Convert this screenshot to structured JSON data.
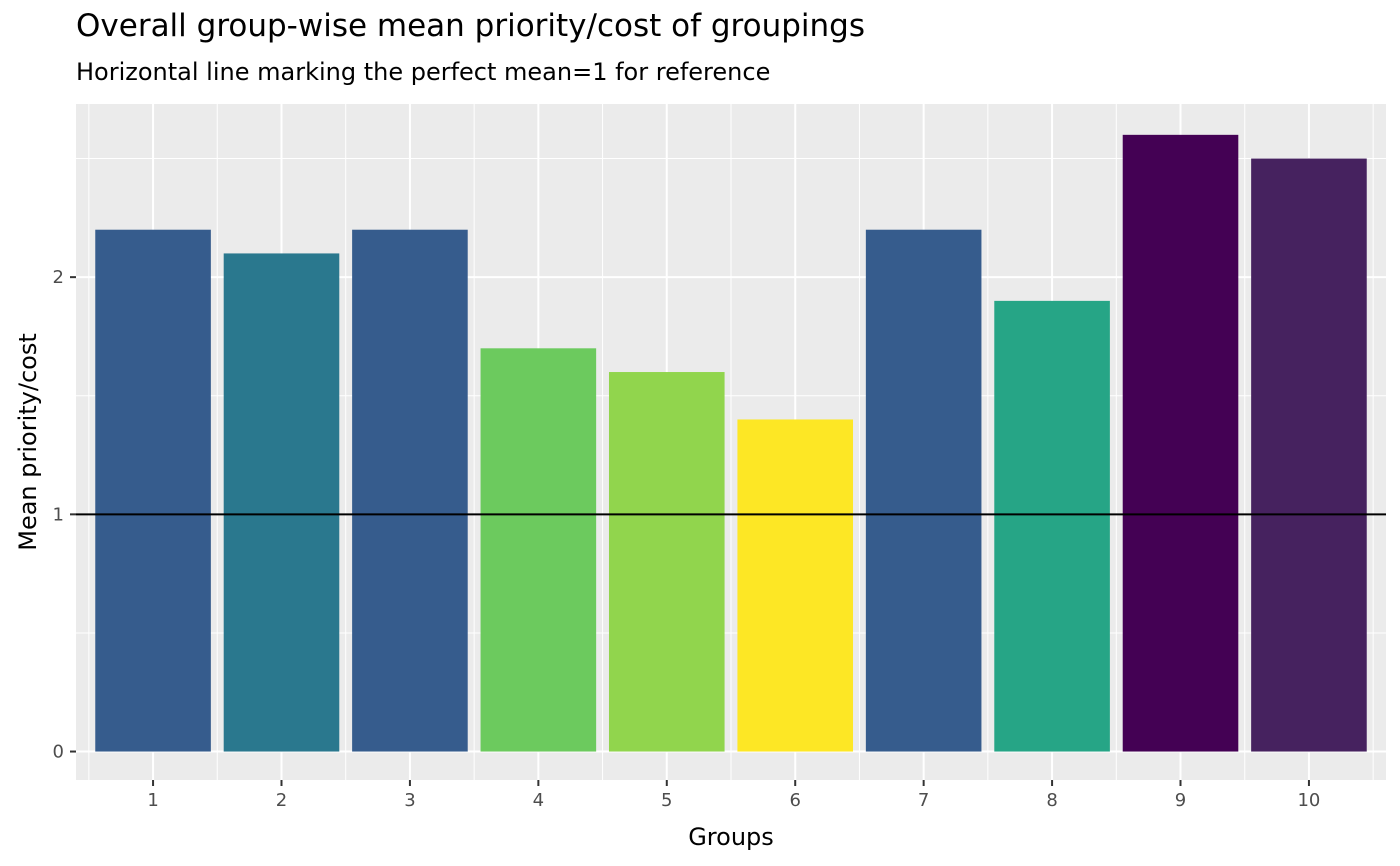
{
  "chart_data": {
    "type": "bar",
    "title": "Overall group-wise mean priority/cost of groupings",
    "subtitle": "Horizontal line marking the perfect mean=1 for reference",
    "xlabel": "Groups",
    "ylabel": "Mean priority/cost",
    "categories": [
      "1",
      "2",
      "3",
      "4",
      "5",
      "6",
      "7",
      "8",
      "9",
      "10"
    ],
    "values": [
      2.2,
      2.1,
      2.2,
      1.7,
      1.6,
      1.4,
      2.2,
      1.9,
      2.6,
      2.5
    ],
    "colors": [
      "#365C8D",
      "#2A788E",
      "#365C8D",
      "#6CCA5E",
      "#91D54D",
      "#FDE725",
      "#365C8D",
      "#26A586",
      "#440154",
      "#46225F"
    ],
    "reference_line": {
      "y": 1,
      "color": "#000000"
    },
    "yticks": [
      0,
      1,
      2
    ],
    "ylim": [
      -0.12,
      2.73
    ],
    "grid": true,
    "panel_background": "#EBEBEB",
    "legend": "none"
  }
}
